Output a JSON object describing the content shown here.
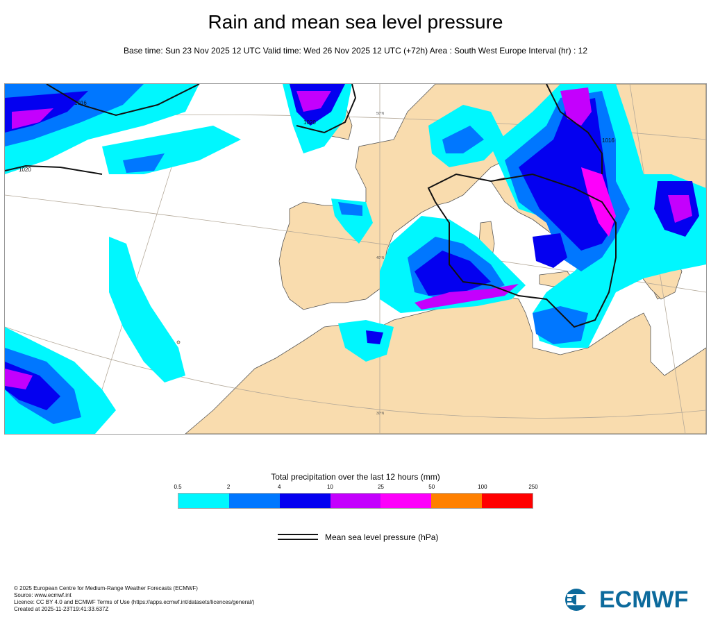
{
  "title": "Rain and mean sea level pressure",
  "subtitle": "Base time: Sun 23 Nov 2025 12 UTC Valid time: Wed 26 Nov 2025 12 UTC (+72h) Area : South West Europe Interval (hr) : 12",
  "map": {
    "land_color": "#f9dcae",
    "sea_color": "#ffffff",
    "graticule_labels": [
      "50°N",
      "40°N",
      "30°N"
    ],
    "isobar_labels": [
      "1016",
      "1020",
      "1020",
      "1016"
    ]
  },
  "legend": {
    "title": "Total precipitation over the last 12 hours (mm)",
    "ticks": [
      "0.5",
      "2",
      "4",
      "10",
      "25",
      "50",
      "100",
      "250"
    ],
    "colors": [
      "#00f7fe",
      "#0077ff",
      "#0400f0",
      "#c400fd",
      "#fd00fb",
      "#ff8000",
      "#ff0000"
    ]
  },
  "mslp_legend": {
    "label": "Mean sea level pressure (hPa)"
  },
  "credits": [
    "© 2025 European Centre for Medium-Range Weather Forecasts (ECMWF)",
    "Source: www.ecmwf.int",
    "Licence: CC BY 4.0 and ECMWF Terms of Use (https://apps.ecmwf.int/datasets/licences/general/)",
    "Created at 2025-11-23T19:41:33.637Z"
  ],
  "logo": {
    "text": "ECMWF",
    "color": "#0c6a9c"
  }
}
